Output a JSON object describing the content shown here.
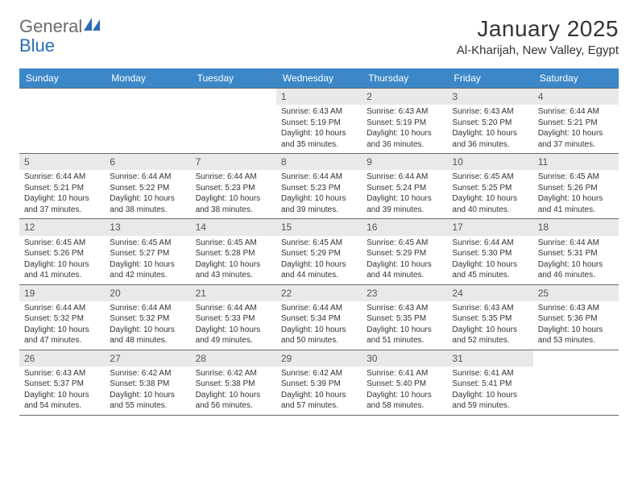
{
  "logo": {
    "part1": "General",
    "part2": "Blue"
  },
  "title": "January 2025",
  "location": "Al-Kharijah, New Valley, Egypt",
  "colors": {
    "header_bg": "#3b87c8",
    "header_text": "#ffffff",
    "daynum_bg": "#e7e9eb",
    "border": "#6a6a6a",
    "logo_gray": "#6a6a6a",
    "logo_blue": "#2a6db8"
  },
  "day_headers": [
    "Sunday",
    "Monday",
    "Tuesday",
    "Wednesday",
    "Thursday",
    "Friday",
    "Saturday"
  ],
  "weeks": [
    [
      {
        "num": "",
        "lines": []
      },
      {
        "num": "",
        "lines": []
      },
      {
        "num": "",
        "lines": []
      },
      {
        "num": "1",
        "lines": [
          "Sunrise: 6:43 AM",
          "Sunset: 5:19 PM",
          "Daylight: 10 hours and 35 minutes."
        ]
      },
      {
        "num": "2",
        "lines": [
          "Sunrise: 6:43 AM",
          "Sunset: 5:19 PM",
          "Daylight: 10 hours and 36 minutes."
        ]
      },
      {
        "num": "3",
        "lines": [
          "Sunrise: 6:43 AM",
          "Sunset: 5:20 PM",
          "Daylight: 10 hours and 36 minutes."
        ]
      },
      {
        "num": "4",
        "lines": [
          "Sunrise: 6:44 AM",
          "Sunset: 5:21 PM",
          "Daylight: 10 hours and 37 minutes."
        ]
      }
    ],
    [
      {
        "num": "5",
        "lines": [
          "Sunrise: 6:44 AM",
          "Sunset: 5:21 PM",
          "Daylight: 10 hours and 37 minutes."
        ]
      },
      {
        "num": "6",
        "lines": [
          "Sunrise: 6:44 AM",
          "Sunset: 5:22 PM",
          "Daylight: 10 hours and 38 minutes."
        ]
      },
      {
        "num": "7",
        "lines": [
          "Sunrise: 6:44 AM",
          "Sunset: 5:23 PM",
          "Daylight: 10 hours and 38 minutes."
        ]
      },
      {
        "num": "8",
        "lines": [
          "Sunrise: 6:44 AM",
          "Sunset: 5:23 PM",
          "Daylight: 10 hours and 39 minutes."
        ]
      },
      {
        "num": "9",
        "lines": [
          "Sunrise: 6:44 AM",
          "Sunset: 5:24 PM",
          "Daylight: 10 hours and 39 minutes."
        ]
      },
      {
        "num": "10",
        "lines": [
          "Sunrise: 6:45 AM",
          "Sunset: 5:25 PM",
          "Daylight: 10 hours and 40 minutes."
        ]
      },
      {
        "num": "11",
        "lines": [
          "Sunrise: 6:45 AM",
          "Sunset: 5:26 PM",
          "Daylight: 10 hours and 41 minutes."
        ]
      }
    ],
    [
      {
        "num": "12",
        "lines": [
          "Sunrise: 6:45 AM",
          "Sunset: 5:26 PM",
          "Daylight: 10 hours and 41 minutes."
        ]
      },
      {
        "num": "13",
        "lines": [
          "Sunrise: 6:45 AM",
          "Sunset: 5:27 PM",
          "Daylight: 10 hours and 42 minutes."
        ]
      },
      {
        "num": "14",
        "lines": [
          "Sunrise: 6:45 AM",
          "Sunset: 5:28 PM",
          "Daylight: 10 hours and 43 minutes."
        ]
      },
      {
        "num": "15",
        "lines": [
          "Sunrise: 6:45 AM",
          "Sunset: 5:29 PM",
          "Daylight: 10 hours and 44 minutes."
        ]
      },
      {
        "num": "16",
        "lines": [
          "Sunrise: 6:45 AM",
          "Sunset: 5:29 PM",
          "Daylight: 10 hours and 44 minutes."
        ]
      },
      {
        "num": "17",
        "lines": [
          "Sunrise: 6:44 AM",
          "Sunset: 5:30 PM",
          "Daylight: 10 hours and 45 minutes."
        ]
      },
      {
        "num": "18",
        "lines": [
          "Sunrise: 6:44 AM",
          "Sunset: 5:31 PM",
          "Daylight: 10 hours and 46 minutes."
        ]
      }
    ],
    [
      {
        "num": "19",
        "lines": [
          "Sunrise: 6:44 AM",
          "Sunset: 5:32 PM",
          "Daylight: 10 hours and 47 minutes."
        ]
      },
      {
        "num": "20",
        "lines": [
          "Sunrise: 6:44 AM",
          "Sunset: 5:32 PM",
          "Daylight: 10 hours and 48 minutes."
        ]
      },
      {
        "num": "21",
        "lines": [
          "Sunrise: 6:44 AM",
          "Sunset: 5:33 PM",
          "Daylight: 10 hours and 49 minutes."
        ]
      },
      {
        "num": "22",
        "lines": [
          "Sunrise: 6:44 AM",
          "Sunset: 5:34 PM",
          "Daylight: 10 hours and 50 minutes."
        ]
      },
      {
        "num": "23",
        "lines": [
          "Sunrise: 6:43 AM",
          "Sunset: 5:35 PM",
          "Daylight: 10 hours and 51 minutes."
        ]
      },
      {
        "num": "24",
        "lines": [
          "Sunrise: 6:43 AM",
          "Sunset: 5:35 PM",
          "Daylight: 10 hours and 52 minutes."
        ]
      },
      {
        "num": "25",
        "lines": [
          "Sunrise: 6:43 AM",
          "Sunset: 5:36 PM",
          "Daylight: 10 hours and 53 minutes."
        ]
      }
    ],
    [
      {
        "num": "26",
        "lines": [
          "Sunrise: 6:43 AM",
          "Sunset: 5:37 PM",
          "Daylight: 10 hours and 54 minutes."
        ]
      },
      {
        "num": "27",
        "lines": [
          "Sunrise: 6:42 AM",
          "Sunset: 5:38 PM",
          "Daylight: 10 hours and 55 minutes."
        ]
      },
      {
        "num": "28",
        "lines": [
          "Sunrise: 6:42 AM",
          "Sunset: 5:38 PM",
          "Daylight: 10 hours and 56 minutes."
        ]
      },
      {
        "num": "29",
        "lines": [
          "Sunrise: 6:42 AM",
          "Sunset: 5:39 PM",
          "Daylight: 10 hours and 57 minutes."
        ]
      },
      {
        "num": "30",
        "lines": [
          "Sunrise: 6:41 AM",
          "Sunset: 5:40 PM",
          "Daylight: 10 hours and 58 minutes."
        ]
      },
      {
        "num": "31",
        "lines": [
          "Sunrise: 6:41 AM",
          "Sunset: 5:41 PM",
          "Daylight: 10 hours and 59 minutes."
        ]
      },
      {
        "num": "",
        "lines": []
      }
    ]
  ]
}
